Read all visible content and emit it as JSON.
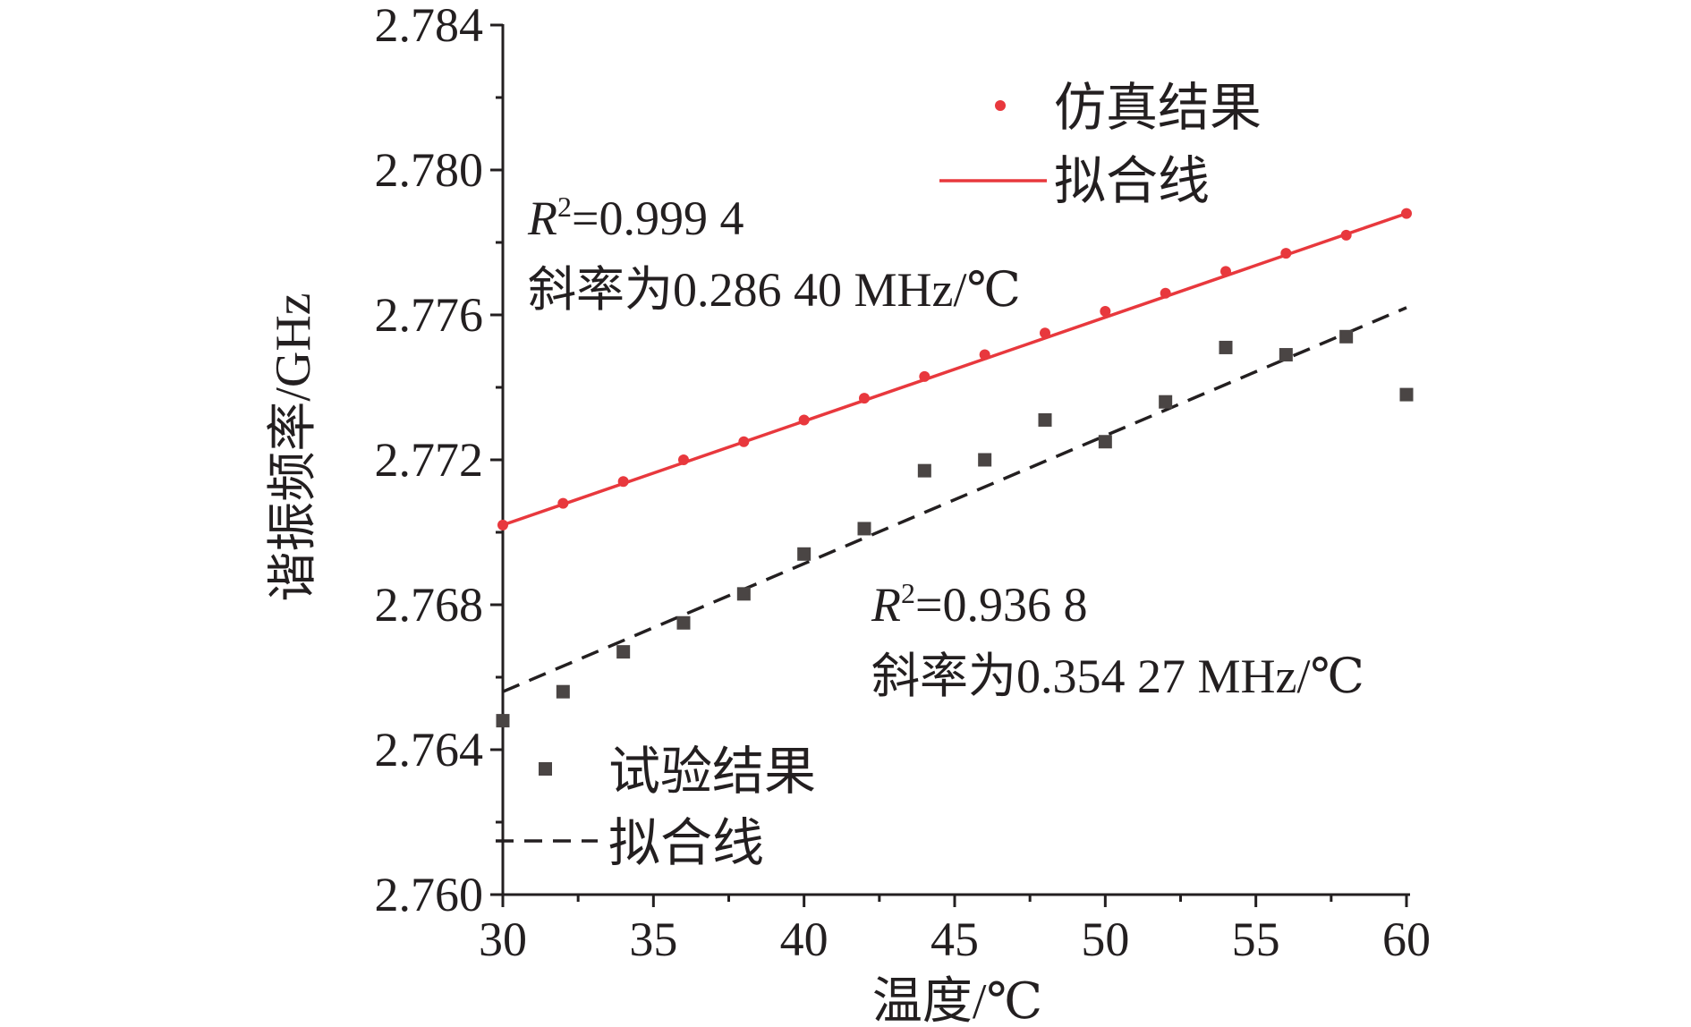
{
  "chart_data": {
    "type": "scatter",
    "title": "",
    "xlabel": "温度/℃",
    "ylabel": "谐振频率/GHz",
    "xlim": [
      30,
      60
    ],
    "ylim": [
      2.76,
      2.784
    ],
    "xticks": [
      "30",
      "35",
      "40",
      "45",
      "50",
      "55",
      "60"
    ],
    "yticks": [
      "2.760",
      "2.764",
      "2.768",
      "2.772",
      "2.776",
      "2.780",
      "2.784"
    ],
    "grid": false,
    "series": [
      {
        "name": "仿真结果",
        "kind": "points",
        "marker": "circle",
        "color": "#e8383d",
        "x": [
          30,
          32,
          34,
          36,
          38,
          40,
          42,
          44,
          46,
          48,
          50,
          52,
          54,
          56,
          58,
          60
        ],
        "y": [
          2.7702,
          2.7708,
          2.7714,
          2.772,
          2.7725,
          2.7731,
          2.7737,
          2.7743,
          2.7749,
          2.7755,
          2.7761,
          2.7766,
          2.7772,
          2.7777,
          2.7782,
          2.7788
        ]
      },
      {
        "name": "拟合线",
        "kind": "line",
        "style": "solid",
        "color": "#e8383d",
        "x": [
          30,
          60
        ],
        "y": [
          2.7702,
          2.7788
        ]
      },
      {
        "name": "试验结果",
        "kind": "points",
        "marker": "square",
        "color": "#4a4544",
        "x": [
          30,
          32,
          34,
          36,
          38,
          40,
          42,
          44,
          46,
          48,
          50,
          52,
          54,
          56,
          58,
          60
        ],
        "y": [
          2.7648,
          2.7656,
          2.7667,
          2.7675,
          2.7683,
          2.7694,
          2.7701,
          2.7717,
          2.772,
          2.7731,
          2.7725,
          2.7736,
          2.7751,
          2.7749,
          2.7754,
          2.7738
        ]
      },
      {
        "name": "拟合线",
        "kind": "line",
        "style": "dashed",
        "color": "#231f20",
        "x": [
          30,
          60
        ],
        "y": [
          2.7656,
          2.7762
        ]
      }
    ],
    "legend": [
      {
        "label": "仿真结果",
        "series": 0,
        "placement": "top-right"
      },
      {
        "label": "拟合线",
        "series": 1,
        "placement": "top-right"
      },
      {
        "label": "试验结果",
        "series": 2,
        "placement": "bottom-left"
      },
      {
        "label": "拟合线",
        "series": 3,
        "placement": "bottom-left"
      }
    ],
    "annotations": [
      {
        "r_symbol": "R",
        "r_sup": "2",
        "r_value": "=0.999 4",
        "slope_text": "斜率为0.286 40 MHz/℃",
        "data_x": 30.8,
        "data_y": 2.7791
      },
      {
        "r_symbol": "R",
        "r_sup": "2",
        "r_value": "=0.936 8",
        "slope_text": "斜率为0.354 27 MHz/℃",
        "data_x": 41.2,
        "data_y": 2.7682
      }
    ]
  }
}
